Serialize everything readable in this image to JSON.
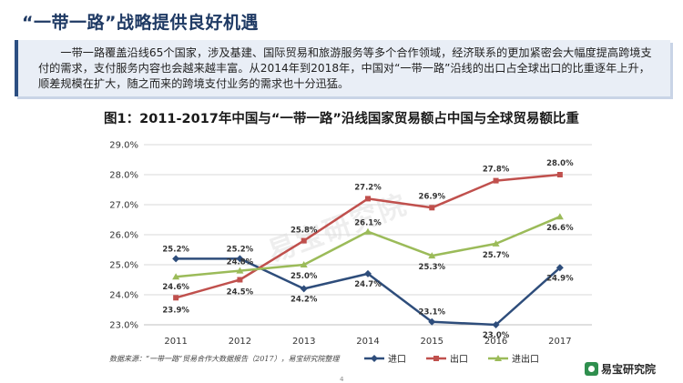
{
  "slide": {
    "title": "“一带一路”战略提供良好机遇",
    "intro": "一带一路覆盖沿线65个国家，涉及基建、国际贸易和旅游服务等多个合作领域，经济联系的更加紧密会大幅度提高跨境支付的需求，支付服务内容也会越来越丰富。从2014年到2018年，中国对“一带一路”沿线的出口占全球出口的比重逐年上升，顺差规模在扩大，随之而来的跨境支付业务的需求也十分迅猛。",
    "source": "数据来源：“一带一路”贸易合作大数据报告（2017），易宝研究院整理",
    "page_number": "4",
    "logo_text": "易宝研究院",
    "logo_icon": "yeepay-logo-icon",
    "watermark": "易宝研究院"
  },
  "chart_data": {
    "type": "line",
    "title": "图1：2011-2017年中国与“一带一路”沿线国家贸易额占中国与全球贸易额比重",
    "x": [
      "2011",
      "2012",
      "2013",
      "2014",
      "2015",
      "2016",
      "2017"
    ],
    "ylim": [
      23.0,
      29.0
    ],
    "yticks": [
      "23.0%",
      "24.0%",
      "25.0%",
      "26.0%",
      "27.0%",
      "28.0%",
      "29.0%"
    ],
    "ystep": 1.0,
    "grid": true,
    "legend": "bottom-right",
    "series": [
      {
        "name": "进口",
        "color": "#2e4d7b",
        "marker": "diamond",
        "values": [
          25.2,
          25.2,
          24.2,
          24.7,
          23.1,
          23.0,
          24.9
        ],
        "labels": [
          "25.2%",
          "25.2%",
          "24.2%",
          "24.7%",
          "23.1%",
          "23.0%",
          "24.9%"
        ]
      },
      {
        "name": "出口",
        "color": "#c0504d",
        "marker": "square",
        "values": [
          23.9,
          24.5,
          25.8,
          27.2,
          26.9,
          27.8,
          28.0
        ],
        "labels": [
          "23.9%",
          "24.5%",
          "25.8%",
          "27.2%",
          "26.9%",
          "27.8%",
          "28.0%"
        ]
      },
      {
        "name": "进出口",
        "color": "#9bbb59",
        "marker": "triangle",
        "values": [
          24.6,
          24.8,
          25.0,
          26.1,
          25.3,
          25.7,
          26.6
        ],
        "labels": [
          "24.6%",
          "24.8%",
          "25.0%",
          "26.1%",
          "25.3%",
          "25.7%",
          "26.6%"
        ]
      }
    ]
  }
}
